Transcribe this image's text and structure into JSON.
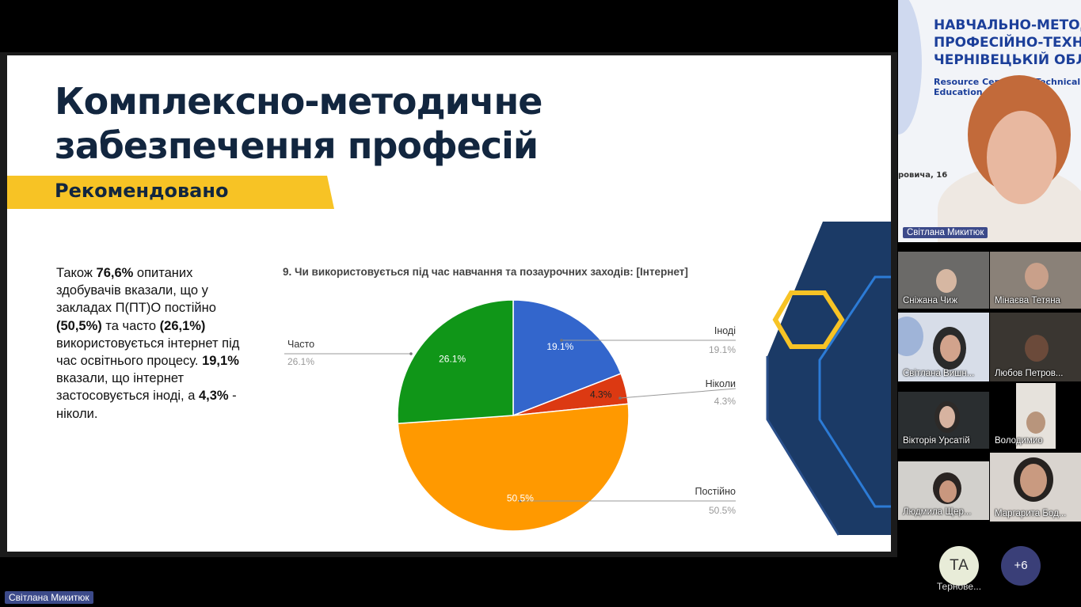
{
  "slide": {
    "title_line1": "Комплексно-методичне",
    "title_line2": "забезпечення професій",
    "banner": "Рекомендовано",
    "body": {
      "p1": "Також ",
      "b1": "76,6%",
      "p2": " опитаних здобувачів вказали, що у закладах П(ПТ)О постійно ",
      "b2": "(50,5%)",
      "p3": " та часто ",
      "b3": "(26,1%)",
      "p4": " використовується інтернет під час освітнього процесу. ",
      "b4": "19,1%",
      "p5": " вказали, що інтернет застосовується іноді, а ",
      "b5": "4,3%",
      "p6": " - ніколи."
    }
  },
  "chart_data": {
    "type": "pie",
    "title": "9. Чи використовується під час навчання та позаурочних заходів: [Інтернет]",
    "slices": [
      {
        "label": "Іноді",
        "value": 19.1,
        "display": "19.1%",
        "color": "#3366cc"
      },
      {
        "label": "Ніколи",
        "value": 4.3,
        "display": "4.3%",
        "color": "#dc3912"
      },
      {
        "label": "Постійно",
        "value": 50.5,
        "display": "50.5%",
        "color": "#ff9900"
      },
      {
        "label": "Часто",
        "value": 26.1,
        "display": "26.1%",
        "color": "#109618"
      }
    ],
    "legend_placement": "outside-labels"
  },
  "participants": {
    "main_speaker": "Світлана  Микитюк",
    "banner_lines": [
      "НАВЧАЛЬНО-МЕТОД",
      "ПРОФЕСІЙНО-ТЕХНІ",
      "ЧЕРНІВЕЦЬКІЙ ОБЛА"
    ],
    "banner_en_lines": [
      "Resource Center for Technical a",
      "Education and"
    ],
    "banner_address": "ровича, 16",
    "tiles": [
      {
        "name": "Сніжана Чиж"
      },
      {
        "name": "Мінаєва Тетяна"
      },
      {
        "name": "Світлана Вишн..."
      },
      {
        "name": "Любов Петров..."
      },
      {
        "name": "Вікторія Урсатій"
      },
      {
        "name": "Володимио"
      },
      {
        "name": "Людмила Щер..."
      },
      {
        "name": "Маргарита Бод..."
      }
    ],
    "avatar_initials": "ТА",
    "avatar_label": "Тернове...",
    "more_count": "+6",
    "screen_share_owner": "Світлана  Микитюк"
  },
  "colors": {
    "title_navy": "#12263f",
    "banner_yellow": "#f7c325",
    "deco_navy": "#1b3a66",
    "name_tag_bg": "#3c4a8a"
  }
}
